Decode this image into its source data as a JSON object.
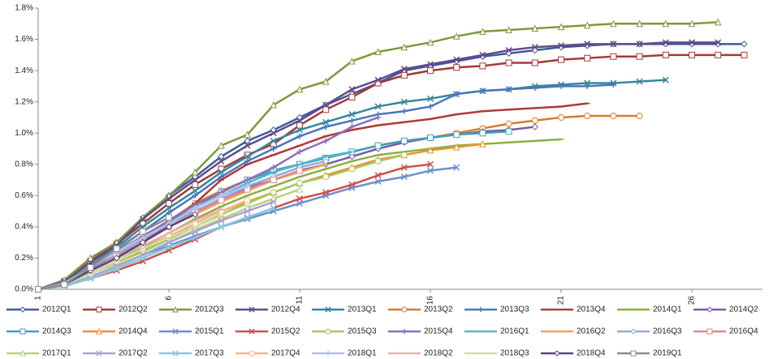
{
  "chart_data": {
    "type": "line",
    "x": [
      1,
      2,
      3,
      4,
      5,
      6,
      7,
      8,
      9,
      10,
      11,
      12,
      13,
      14,
      15,
      16,
      17,
      18,
      19,
      20,
      21,
      22,
      23,
      24,
      25,
      26,
      27,
      28
    ],
    "xlim": [
      1,
      28.7
    ],
    "xticks": [
      1,
      6,
      11,
      16,
      21,
      26
    ],
    "ylim": [
      0,
      1.8
    ],
    "yticks": [
      {
        "value": 0,
        "label": "0.0%"
      },
      {
        "value": 0.2,
        "label": "0.2%"
      },
      {
        "value": 0.4,
        "label": "0.4%"
      },
      {
        "value": 0.6,
        "label": "0.6%"
      },
      {
        "value": 0.8,
        "label": "0.8%"
      },
      {
        "value": 1.0,
        "label": "1.0%"
      },
      {
        "value": 1.2,
        "label": "1.2%"
      },
      {
        "value": 1.4,
        "label": "1.4%"
      },
      {
        "value": 1.6,
        "label": "1.6%"
      },
      {
        "value": 1.8,
        "label": "1.8%"
      }
    ],
    "grid": false,
    "legend": "bottom",
    "series": [
      {
        "name": "2012Q1",
        "color": "#3b5b9d",
        "values": [
          0,
          0.05,
          0.18,
          0.3,
          0.45,
          0.6,
          0.72,
          0.85,
          0.95,
          1.02,
          1.1,
          1.18,
          1.25,
          1.32,
          1.4,
          1.43,
          1.46,
          1.49,
          1.51,
          1.53,
          1.55,
          1.56,
          1.57,
          1.57,
          1.57,
          1.57,
          1.57,
          1.57
        ]
      },
      {
        "name": "2012Q2",
        "color": "#a23a38",
        "values": [
          0,
          0.05,
          0.18,
          0.29,
          0.42,
          0.55,
          0.67,
          0.77,
          0.86,
          0.93,
          1.05,
          1.15,
          1.23,
          1.32,
          1.37,
          1.4,
          1.42,
          1.43,
          1.45,
          1.45,
          1.47,
          1.48,
          1.49,
          1.49,
          1.5,
          1.5,
          1.5,
          1.5
        ]
      },
      {
        "name": "2012Q3",
        "color": "#7b9a3c",
        "values": [
          0,
          0.06,
          0.2,
          0.3,
          0.46,
          0.6,
          0.75,
          0.92,
          0.99,
          1.18,
          1.28,
          1.33,
          1.46,
          1.52,
          1.55,
          1.58,
          1.62,
          1.65,
          1.66,
          1.67,
          1.68,
          1.69,
          1.7,
          1.7,
          1.7,
          1.7,
          1.71,
          null
        ]
      },
      {
        "name": "2012Q4",
        "color": "#654a8a",
        "values": [
          0,
          0.05,
          0.17,
          0.28,
          0.45,
          0.58,
          0.7,
          0.82,
          0.92,
          1.0,
          1.08,
          1.18,
          1.28,
          1.34,
          1.41,
          1.44,
          1.47,
          1.5,
          1.53,
          1.55,
          1.56,
          1.57,
          1.57,
          1.57,
          1.58,
          1.58,
          1.58,
          null
        ]
      },
      {
        "name": "2013Q1",
        "color": "#36879e",
        "values": [
          0,
          0.04,
          0.15,
          0.27,
          0.4,
          0.52,
          0.63,
          0.75,
          0.85,
          0.95,
          1.02,
          1.07,
          1.12,
          1.17,
          1.2,
          1.22,
          1.25,
          1.27,
          1.28,
          1.3,
          1.31,
          1.32,
          1.32,
          1.33,
          1.34,
          null,
          null,
          null
        ]
      },
      {
        "name": "2013Q2",
        "color": "#d8792a",
        "values": [
          0,
          0.03,
          0.12,
          0.22,
          0.32,
          0.44,
          0.55,
          0.63,
          0.7,
          0.76,
          0.8,
          0.84,
          0.88,
          0.92,
          0.95,
          0.97,
          1.0,
          1.03,
          1.06,
          1.08,
          1.1,
          1.11,
          1.11,
          1.11,
          null,
          null,
          null,
          null
        ]
      },
      {
        "name": "2013Q3",
        "color": "#4a76bd",
        "values": [
          0,
          0.04,
          0.14,
          0.25,
          0.37,
          0.49,
          0.6,
          0.72,
          0.82,
          0.9,
          0.98,
          1.04,
          1.08,
          1.12,
          1.14,
          1.17,
          1.25,
          1.27,
          1.28,
          1.29,
          1.3,
          1.3,
          1.31,
          null,
          null,
          null,
          null,
          null
        ]
      },
      {
        "name": "2013Q4",
        "color": "#ae3a37",
        "values": [
          0,
          0.03,
          0.12,
          0.2,
          0.3,
          0.42,
          0.55,
          0.7,
          0.8,
          0.86,
          0.92,
          0.98,
          1.02,
          1.05,
          1.07,
          1.09,
          1.12,
          1.14,
          1.15,
          1.16,
          1.17,
          1.19,
          null,
          null,
          null,
          null,
          null,
          null
        ]
      },
      {
        "name": "2014Q1",
        "color": "#8bb043",
        "values": [
          0,
          0.03,
          0.1,
          0.18,
          0.27,
          0.36,
          0.45,
          0.53,
          0.6,
          0.66,
          0.72,
          0.77,
          0.82,
          0.86,
          0.88,
          0.9,
          0.92,
          0.93,
          0.94,
          0.95,
          0.96,
          null,
          null,
          null,
          null,
          null,
          null,
          null
        ]
      },
      {
        "name": "2014Q2",
        "color": "#7a5ba1",
        "values": [
          0,
          0.04,
          0.13,
          0.22,
          0.32,
          0.42,
          0.5,
          0.58,
          0.65,
          0.7,
          0.76,
          0.8,
          0.85,
          0.9,
          0.94,
          0.97,
          0.99,
          1.01,
          1.02,
          1.04,
          null,
          null,
          null,
          null,
          null,
          null,
          null,
          null
        ]
      },
      {
        "name": "2014Q3",
        "color": "#3ea0bf",
        "values": [
          0,
          0.03,
          0.12,
          0.22,
          0.32,
          0.43,
          0.52,
          0.62,
          0.7,
          0.76,
          0.8,
          0.84,
          0.88,
          0.92,
          0.95,
          0.97,
          0.99,
          1.0,
          1.01,
          null,
          null,
          null,
          null,
          null,
          null,
          null,
          null,
          null
        ]
      },
      {
        "name": "2014Q4",
        "color": "#f0902c",
        "values": [
          0,
          0.03,
          0.1,
          0.17,
          0.25,
          0.33,
          0.42,
          0.5,
          0.56,
          0.62,
          0.68,
          0.73,
          0.78,
          0.83,
          0.86,
          0.89,
          0.91,
          0.93,
          null,
          null,
          null,
          null,
          null,
          null,
          null,
          null,
          null,
          null
        ]
      },
      {
        "name": "2015Q1",
        "color": "#6a8fd0",
        "values": [
          0,
          0.02,
          0.08,
          0.15,
          0.22,
          0.28,
          0.34,
          0.4,
          0.45,
          0.5,
          0.55,
          0.6,
          0.65,
          0.69,
          0.72,
          0.76,
          0.78,
          null,
          null,
          null,
          null,
          null,
          null,
          null,
          null,
          null,
          null,
          null
        ]
      },
      {
        "name": "2015Q2",
        "color": "#d04f4c",
        "values": [
          0,
          0.02,
          0.07,
          0.12,
          0.18,
          0.25,
          0.32,
          0.4,
          0.46,
          0.52,
          0.58,
          0.62,
          0.67,
          0.73,
          0.78,
          0.8,
          null,
          null,
          null,
          null,
          null,
          null,
          null,
          null,
          null,
          null,
          null,
          null
        ]
      },
      {
        "name": "2015Q3",
        "color": "#a3c862",
        "values": [
          0,
          0.03,
          0.1,
          0.17,
          0.24,
          0.32,
          0.4,
          0.48,
          0.55,
          0.62,
          0.68,
          0.72,
          0.77,
          0.82,
          0.86,
          null,
          null,
          null,
          null,
          null,
          null,
          null,
          null,
          null,
          null,
          null,
          null,
          null
        ]
      },
      {
        "name": "2015Q4",
        "color": "#8e6fb8",
        "values": [
          0,
          0.04,
          0.14,
          0.24,
          0.34,
          0.44,
          0.54,
          0.62,
          0.7,
          0.78,
          0.88,
          0.95,
          1.04,
          1.1,
          null,
          null,
          null,
          null,
          null,
          null,
          null,
          null,
          null,
          null,
          null,
          null,
          null,
          null
        ]
      },
      {
        "name": "2016Q1",
        "color": "#4fb7d0",
        "values": [
          0,
          0.03,
          0.12,
          0.22,
          0.32,
          0.42,
          0.52,
          0.6,
          0.68,
          0.75,
          0.8,
          0.85,
          0.88,
          null,
          null,
          null,
          null,
          null,
          null,
          null,
          null,
          null,
          null,
          null,
          null,
          null,
          null,
          null
        ]
      },
      {
        "name": "2016Q2",
        "color": "#f4a454",
        "values": [
          0,
          0.03,
          0.11,
          0.2,
          0.3,
          0.4,
          0.48,
          0.56,
          0.63,
          0.7,
          0.75,
          0.8,
          null,
          null,
          null,
          null,
          null,
          null,
          null,
          null,
          null,
          null,
          null,
          null,
          null,
          null,
          null,
          null
        ]
      },
      {
        "name": "2016Q3",
        "color": "#92a9d8",
        "values": [
          0,
          0.03,
          0.12,
          0.22,
          0.32,
          0.42,
          0.5,
          0.58,
          0.66,
          0.72,
          0.78,
          0.82,
          null,
          null,
          null,
          null,
          null,
          null,
          null,
          null,
          null,
          null,
          null,
          null,
          null,
          null,
          null,
          null
        ]
      },
      {
        "name": "2016Q4",
        "color": "#de8a88",
        "values": [
          0,
          0.03,
          0.12,
          0.21,
          0.3,
          0.4,
          0.49,
          0.57,
          0.64,
          0.7,
          0.76,
          null,
          null,
          null,
          null,
          null,
          null,
          null,
          null,
          null,
          null,
          null,
          null,
          null,
          null,
          null,
          null,
          null
        ]
      },
      {
        "name": "2017Q1",
        "color": "#b9d27f",
        "values": [
          0,
          0.02,
          0.08,
          0.14,
          0.22,
          0.3,
          0.38,
          0.45,
          0.52,
          0.58,
          0.64,
          null,
          null,
          null,
          null,
          null,
          null,
          null,
          null,
          null,
          null,
          null,
          null,
          null,
          null,
          null,
          null,
          null
        ]
      },
      {
        "name": "2017Q2",
        "color": "#b0a1d0",
        "values": [
          0,
          0.02,
          0.08,
          0.15,
          0.22,
          0.3,
          0.37,
          0.44,
          0.5,
          0.56,
          null,
          null,
          null,
          null,
          null,
          null,
          null,
          null,
          null,
          null,
          null,
          null,
          null,
          null,
          null,
          null,
          null,
          null
        ]
      },
      {
        "name": "2017Q3",
        "color": "#83c9e0",
        "values": [
          0,
          0.02,
          0.07,
          0.13,
          0.2,
          0.27,
          0.33,
          0.4,
          0.46,
          0.52,
          null,
          null,
          null,
          null,
          null,
          null,
          null,
          null,
          null,
          null,
          null,
          null,
          null,
          null,
          null,
          null,
          null,
          null
        ]
      },
      {
        "name": "2017Q4",
        "color": "#f7ba82",
        "values": [
          0,
          0.03,
          0.1,
          0.18,
          0.26,
          0.34,
          0.42,
          0.5,
          0.57,
          null,
          null,
          null,
          null,
          null,
          null,
          null,
          null,
          null,
          null,
          null,
          null,
          null,
          null,
          null,
          null,
          null,
          null,
          null
        ]
      },
      {
        "name": "2018Q1",
        "color": "#b2c1e2",
        "values": [
          0,
          0.04,
          0.14,
          0.24,
          0.33,
          0.42,
          0.52,
          0.6,
          0.66,
          null,
          null,
          null,
          null,
          null,
          null,
          null,
          null,
          null,
          null,
          null,
          null,
          null,
          null,
          null,
          null,
          null,
          null,
          null
        ]
      },
      {
        "name": "2018Q2",
        "color": "#e8b2b0",
        "values": [
          0,
          0.03,
          0.11,
          0.2,
          0.28,
          0.36,
          0.44,
          0.51,
          null,
          null,
          null,
          null,
          null,
          null,
          null,
          null,
          null,
          null,
          null,
          null,
          null,
          null,
          null,
          null,
          null,
          null,
          null,
          null
        ]
      },
      {
        "name": "2018Q3",
        "color": "#cbe0a2",
        "values": [
          0,
          0.03,
          0.1,
          0.18,
          0.26,
          0.33,
          0.4,
          0.47,
          null,
          null,
          null,
          null,
          null,
          null,
          null,
          null,
          null,
          null,
          null,
          null,
          null,
          null,
          null,
          null,
          null,
          null,
          null,
          null
        ]
      },
      {
        "name": "2018Q4",
        "color": "#5c4480",
        "values": [
          0,
          0.03,
          0.12,
          0.2,
          0.3,
          0.4,
          0.48,
          null,
          null,
          null,
          null,
          null,
          null,
          null,
          null,
          null,
          null,
          null,
          null,
          null,
          null,
          null,
          null,
          null,
          null,
          null,
          null,
          null
        ]
      },
      {
        "name": "2019Q1",
        "color": "#8c8c8c",
        "values": [
          0,
          0.03,
          0.14,
          0.26,
          0.37,
          0.46,
          null,
          null,
          null,
          null,
          null,
          null,
          null,
          null,
          null,
          null,
          null,
          null,
          null,
          null,
          null,
          null,
          null,
          null,
          null,
          null,
          null,
          null
        ]
      }
    ]
  }
}
